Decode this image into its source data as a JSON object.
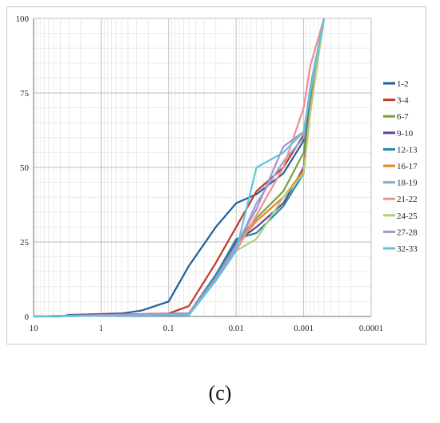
{
  "caption": "(c)",
  "chart_data": {
    "type": "line",
    "x_scale": "log",
    "x_reversed": true,
    "xlim": [
      10,
      0.0001
    ],
    "ylim": [
      0,
      100
    ],
    "x_ticks": [
      10,
      1,
      0.1,
      0.01,
      0.001,
      0.0001
    ],
    "x_tick_labels": [
      "10",
      "1",
      "0.1",
      "0.01",
      "0.001",
      "0.0001"
    ],
    "y_ticks": [
      0,
      25,
      50,
      75,
      100
    ],
    "y_tick_labels": [
      "0",
      "25",
      "50",
      "75",
      "100"
    ],
    "grid": true,
    "legend_position": "right",
    "title": "",
    "xlabel": "",
    "ylabel": "",
    "series": [
      {
        "name": "1-2",
        "color": "#1f5f9e",
        "points": [
          [
            10,
            0
          ],
          [
            4,
            0
          ],
          [
            3,
            0.5
          ],
          [
            1,
            0.8
          ],
          [
            0.5,
            1
          ],
          [
            0.25,
            2
          ],
          [
            0.1,
            5
          ],
          [
            0.075,
            10
          ],
          [
            0.05,
            17
          ],
          [
            0.02,
            30
          ],
          [
            0.01,
            38
          ],
          [
            0.005,
            41
          ],
          [
            0.002,
            48
          ],
          [
            0.001,
            59
          ],
          [
            0.0008,
            70
          ],
          [
            0.0005,
            100
          ]
        ]
      },
      {
        "name": "3-4",
        "color": "#c0392b",
        "points": [
          [
            10,
            0
          ],
          [
            0.1,
            1
          ],
          [
            0.05,
            3.5
          ],
          [
            0.02,
            18
          ],
          [
            0.01,
            30
          ],
          [
            0.005,
            42
          ],
          [
            0.002,
            50
          ],
          [
            0.001,
            61
          ],
          [
            0.0008,
            75
          ],
          [
            0.0005,
            100
          ]
        ]
      },
      {
        "name": "6-7",
        "color": "#77a13c",
        "points": [
          [
            10,
            0
          ],
          [
            0.05,
            1
          ],
          [
            0.02,
            13
          ],
          [
            0.01,
            25
          ],
          [
            0.005,
            33
          ],
          [
            0.002,
            42
          ],
          [
            0.001,
            55
          ],
          [
            0.0008,
            72
          ],
          [
            0.0005,
            100
          ]
        ]
      },
      {
        "name": "9-10",
        "color": "#6a3f9a",
        "points": [
          [
            10,
            0
          ],
          [
            0.05,
            1
          ],
          [
            0.02,
            14
          ],
          [
            0.01,
            25
          ],
          [
            0.005,
            30
          ],
          [
            0.002,
            38
          ],
          [
            0.001,
            50
          ],
          [
            0.0008,
            73
          ],
          [
            0.0005,
            100
          ]
        ]
      },
      {
        "name": "12-13",
        "color": "#1b8fa3",
        "points": [
          [
            10,
            0
          ],
          [
            0.05,
            1
          ],
          [
            0.02,
            14
          ],
          [
            0.01,
            26
          ],
          [
            0.005,
            28
          ],
          [
            0.002,
            37
          ],
          [
            0.001,
            48
          ],
          [
            0.0008,
            72
          ],
          [
            0.0005,
            100
          ]
        ]
      },
      {
        "name": "16-17",
        "color": "#e8841e",
        "points": [
          [
            10,
            0
          ],
          [
            0.05,
            1
          ],
          [
            0.02,
            13
          ],
          [
            0.01,
            24
          ],
          [
            0.005,
            32
          ],
          [
            0.002,
            40
          ],
          [
            0.001,
            49
          ],
          [
            0.0008,
            70
          ],
          [
            0.0005,
            100
          ]
        ]
      },
      {
        "name": "18-19",
        "color": "#8fa8cf",
        "points": [
          [
            10,
            0
          ],
          [
            0.05,
            1
          ],
          [
            0.02,
            12
          ],
          [
            0.01,
            23
          ],
          [
            0.005,
            38
          ],
          [
            0.002,
            52
          ],
          [
            0.001,
            60
          ],
          [
            0.0008,
            77
          ],
          [
            0.0005,
            100
          ]
        ]
      },
      {
        "name": "21-22",
        "color": "#ef8f8f",
        "points": [
          [
            10,
            0
          ],
          [
            0.05,
            1
          ],
          [
            0.02,
            12
          ],
          [
            0.01,
            22
          ],
          [
            0.005,
            34
          ],
          [
            0.002,
            50
          ],
          [
            0.001,
            70
          ],
          [
            0.0008,
            84
          ],
          [
            0.0005,
            100
          ]
        ]
      },
      {
        "name": "24-25",
        "color": "#aed07d",
        "points": [
          [
            10,
            0
          ],
          [
            0.05,
            0.5
          ],
          [
            0.02,
            12
          ],
          [
            0.01,
            22
          ],
          [
            0.005,
            26
          ],
          [
            0.002,
            40
          ],
          [
            0.001,
            48
          ],
          [
            0.0008,
            68
          ],
          [
            0.0005,
            100
          ]
        ]
      },
      {
        "name": "27-28",
        "color": "#ad8fd0",
        "points": [
          [
            10,
            0
          ],
          [
            0.05,
            1
          ],
          [
            0.02,
            13
          ],
          [
            0.01,
            24
          ],
          [
            0.005,
            36
          ],
          [
            0.002,
            57
          ],
          [
            0.001,
            62
          ],
          [
            0.0008,
            76
          ],
          [
            0.0005,
            100
          ]
        ]
      },
      {
        "name": "32-33",
        "color": "#5fc4dd",
        "points": [
          [
            10,
            0
          ],
          [
            0.05,
            0.5
          ],
          [
            0.02,
            12
          ],
          [
            0.01,
            22
          ],
          [
            0.005,
            50
          ],
          [
            0.002,
            55
          ],
          [
            0.001,
            62
          ],
          [
            0.0008,
            75
          ],
          [
            0.0005,
            100
          ]
        ]
      }
    ]
  }
}
